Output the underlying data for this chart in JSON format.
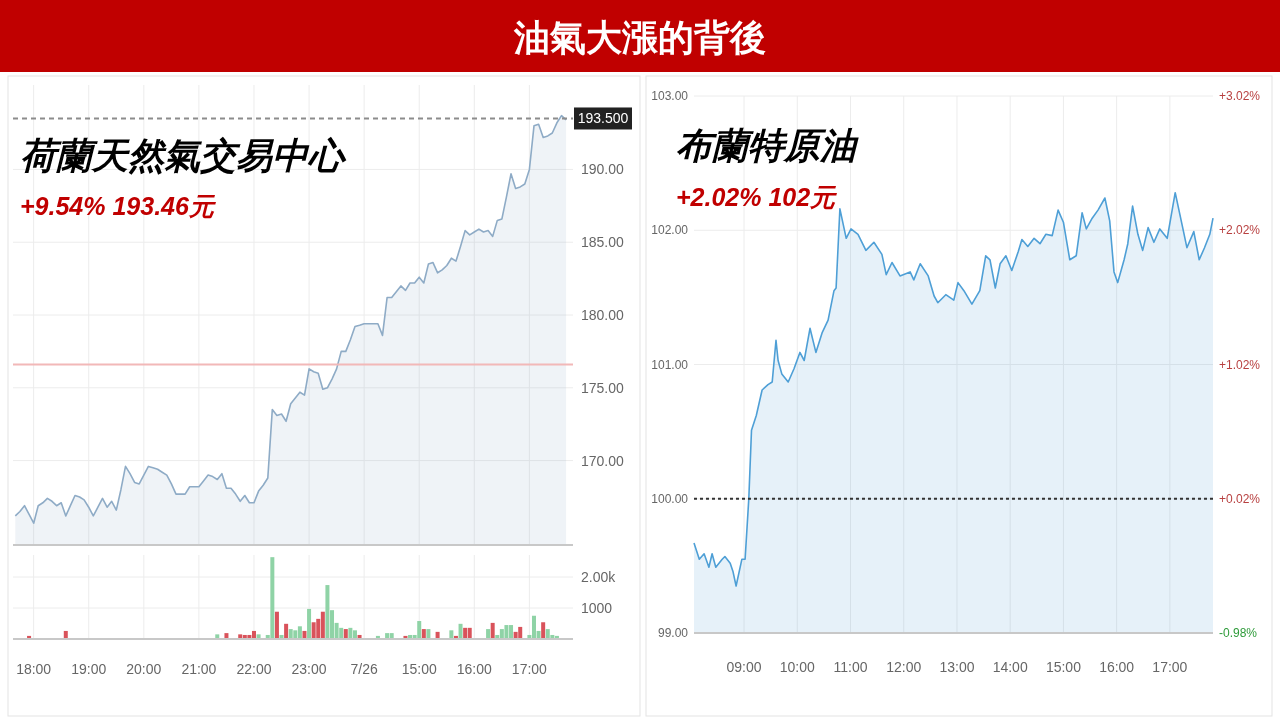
{
  "chart_data": [
    {
      "type": "other",
      "title": "油氣大漲的背後"
    },
    {
      "type": "area",
      "title": "荷蘭天然氣交易中心",
      "subtitle": "+9.54% 193.46元",
      "ylim": [
        164.2,
        195.8
      ],
      "grid": true,
      "tick_labels": "y",
      "categories": [
        null,
        null,
        null,
        null,
        null,
        null,
        null,
        null,
        null,
        null,
        null,
        null,
        null,
        null,
        null,
        null,
        null,
        null,
        null,
        null,
        null,
        null,
        null,
        null,
        null,
        null,
        null,
        null,
        null,
        null,
        null,
        null,
        null,
        null,
        null,
        null,
        null,
        null,
        null,
        null,
        null,
        null,
        null,
        null,
        null,
        null,
        null,
        null,
        null,
        null,
        null,
        null,
        null,
        null,
        null,
        null,
        null,
        null,
        null,
        null,
        null,
        null,
        null,
        null,
        null,
        null,
        null,
        null,
        null,
        null,
        null,
        null,
        null,
        null,
        null,
        null,
        null,
        null,
        null,
        null,
        null,
        null,
        null,
        null,
        null,
        null,
        null,
        null,
        null,
        null,
        null,
        null,
        null,
        null,
        null,
        null,
        null,
        null,
        null,
        null,
        null,
        null,
        null,
        null,
        null,
        null,
        null,
        null,
        null,
        null,
        null,
        null,
        null,
        null,
        null,
        null,
        null,
        null,
        null,
        null,
        null,
        null
      ],
      "yticks": [
        {
          "value": 170,
          "label": "170.00"
        },
        {
          "value": 175,
          "label": "175.00"
        },
        {
          "value": 180,
          "label": "180.00"
        },
        {
          "value": 185,
          "label": "185.00"
        },
        {
          "value": 190,
          "label": "190.00"
        }
      ],
      "ref_lines": [
        {
          "axis": "y",
          "value": 193.5,
          "label": "193.500",
          "color": "#8c8c8c",
          "line_style": "dashed"
        },
        {
          "axis": "y",
          "value": 176.6,
          "color": "#f2b8b8",
          "line_style": "solid"
        }
      ],
      "series": [
        {
          "color": "#8eabc6",
          "values": [
            166.2,
            166.5,
            166.9,
            166.3,
            165.7,
            166.9,
            167.1,
            167.4,
            167.2,
            166.9,
            167.1,
            166.2,
            166.9,
            167.6,
            167.5,
            167.3,
            166.8,
            166.2,
            166.8,
            167.4,
            166.8,
            167.2,
            166.6,
            168.0,
            169.6,
            169.1,
            168.5,
            168.4,
            169.0,
            169.6,
            169.5,
            169.4,
            169.2,
            169.0,
            168.4,
            167.7,
            167.7,
            167.7,
            168.2,
            168.2,
            168.2,
            168.6,
            169.0,
            168.9,
            168.7,
            169.1,
            168.1,
            168.1,
            167.7,
            167.2,
            167.6,
            167.1,
            167.1,
            167.9,
            168.3,
            168.8,
            173.5,
            173.1,
            173.2,
            172.7,
            173.9,
            174.3,
            174.7,
            174.5,
            176.3,
            176.1,
            176.0,
            174.9,
            175.0,
            175.6,
            176.3,
            177.5,
            177.5,
            178.3,
            179.2,
            179.3,
            179.4,
            179.4,
            179.4,
            179.4,
            178.6,
            181.2,
            181.2,
            181.6,
            182.0,
            181.7,
            182.2,
            182.2,
            182.6,
            182.2,
            183.5,
            183.6,
            182.9,
            183.1,
            183.4,
            183.9,
            183.7,
            184.7,
            185.8,
            185.5,
            185.7,
            185.9,
            185.7,
            185.8,
            185.4,
            186.5,
            186.6,
            188.1,
            189.7,
            188.7,
            188.8,
            189.0,
            190.0,
            193.0,
            193.1,
            192.2,
            192.3,
            192.5,
            193.2,
            193.7,
            193.4,
            null
          ]
        }
      ]
    },
    {
      "type": "bar",
      "ylim": [
        0,
        2710
      ],
      "grid": true,
      "categories": [
        null,
        null,
        null,
        null,
        "18:00",
        null,
        null,
        null,
        null,
        null,
        null,
        null,
        null,
        null,
        null,
        null,
        "19:00",
        null,
        null,
        null,
        null,
        null,
        null,
        null,
        null,
        null,
        null,
        null,
        "20:00",
        null,
        null,
        null,
        null,
        null,
        null,
        null,
        null,
        null,
        null,
        null,
        "21:00",
        null,
        null,
        null,
        null,
        null,
        null,
        null,
        null,
        null,
        null,
        null,
        "22:00",
        null,
        null,
        null,
        null,
        null,
        null,
        null,
        null,
        null,
        null,
        null,
        "23:00",
        null,
        null,
        null,
        null,
        null,
        null,
        null,
        null,
        null,
        null,
        null,
        "7/26",
        null,
        null,
        null,
        null,
        null,
        null,
        null,
        null,
        null,
        null,
        null,
        "15:00",
        null,
        null,
        null,
        null,
        null,
        null,
        null,
        null,
        null,
        null,
        null,
        "16:00",
        null,
        null,
        null,
        null,
        null,
        null,
        null,
        null,
        null,
        null,
        null,
        "17:00",
        null,
        null,
        null,
        null,
        null,
        null,
        null,
        null,
        null
      ],
      "yticks": [
        1000,
        {
          "value": 2000,
          "label": "2.00k"
        }
      ],
      "values": [
        null,
        null,
        null,
        100,
        null,
        null,
        null,
        null,
        null,
        null,
        null,
        260,
        null,
        null,
        null,
        null,
        null,
        null,
        null,
        null,
        null,
        null,
        null,
        null,
        null,
        null,
        null,
        null,
        null,
        null,
        null,
        null,
        null,
        null,
        null,
        null,
        null,
        null,
        null,
        null,
        null,
        null,
        null,
        null,
        150,
        null,
        190,
        null,
        null,
        150,
        130,
        130,
        260,
        150,
        null,
        130,
        2640,
        880,
        130,
        490,
        320,
        280,
        410,
        260,
        970,
        540,
        650,
        880,
        1740,
        930,
        520,
        360,
        320,
        360,
        280,
        130,
        null,
        null,
        null,
        100,
        null,
        190,
        190,
        null,
        null,
        100,
        130,
        130,
        580,
        320,
        320,
        null,
        230,
        null,
        null,
        280,
        100,
        490,
        360,
        360,
        null,
        null,
        null,
        320,
        520,
        130,
        320,
        450,
        450,
        230,
        390,
        null,
        130,
        750,
        260,
        540,
        320,
        130,
        100,
        null,
        null,
        null
      ],
      "colors": [
        null,
        null,
        null,
        "#d9535b",
        null,
        null,
        null,
        null,
        null,
        null,
        null,
        "#d9535b",
        null,
        null,
        null,
        null,
        null,
        null,
        null,
        null,
        null,
        null,
        null,
        null,
        null,
        null,
        null,
        null,
        null,
        null,
        null,
        null,
        null,
        null,
        null,
        null,
        null,
        null,
        null,
        null,
        null,
        null,
        null,
        null,
        "#8fd3a6",
        null,
        "#d9535b",
        null,
        null,
        "#d9535b",
        "#d9535b",
        "#d9535b",
        "#d9535b",
        "#8fd3a6",
        null,
        "#8fd3a6",
        "#8fd3a6",
        "#d9535b",
        "#8fd3a6",
        "#d9535b",
        "#8fd3a6",
        "#8fd3a6",
        "#8fd3a6",
        "#d9535b",
        "#8fd3a6",
        "#d9535b",
        "#d9535b",
        "#d9535b",
        "#8fd3a6",
        "#8fd3a6",
        "#8fd3a6",
        "#8fd3a6",
        "#d9535b",
        "#8fd3a6",
        "#8fd3a6",
        "#d9535b",
        null,
        null,
        null,
        "#8fd3a6",
        null,
        "#8fd3a6",
        "#8fd3a6",
        null,
        null,
        "#d9535b",
        "#8fd3a6",
        "#8fd3a6",
        "#8fd3a6",
        "#d9535b",
        "#8fd3a6",
        null,
        "#d9535b",
        null,
        null,
        "#8fd3a6",
        "#d9535b",
        "#8fd3a6",
        "#d9535b",
        "#d9535b",
        null,
        null,
        null,
        "#8fd3a6",
        "#d9535b",
        "#8fd3a6",
        "#8fd3a6",
        "#8fd3a6",
        "#8fd3a6",
        "#d9535b",
        "#d9535b",
        null,
        "#8fd3a6",
        "#8fd3a6",
        "#8fd3a6",
        "#d9535b",
        "#8fd3a6",
        "#8fd3a6",
        "#8fd3a6",
        null,
        null,
        null
      ]
    },
    {
      "type": "area",
      "title": "布蘭特原油",
      "subtitle": "+2.02% 102元",
      "xlim": [
        8.06,
        17.81
      ],
      "ylim": [
        99,
        103
      ],
      "y2lim": [
        -0.98,
        3.02
      ],
      "grid": true,
      "xticks": [
        {
          "value": 9,
          "label": "09:00"
        },
        {
          "value": 10,
          "label": "10:00"
        },
        {
          "value": 11,
          "label": "11:00"
        },
        {
          "value": 12,
          "label": "12:00"
        },
        {
          "value": 13,
          "label": "13:00"
        },
        {
          "value": 14,
          "label": "14:00"
        },
        {
          "value": 15,
          "label": "15:00"
        },
        {
          "value": 16,
          "label": "16:00"
        },
        {
          "value": 17,
          "label": "17:00"
        }
      ],
      "yticks": [
        {
          "value": 99,
          "label": "99.00"
        },
        {
          "value": 100,
          "label": "100.00"
        },
        {
          "value": 101,
          "label": "101.00"
        },
        {
          "value": 102,
          "label": "102.00"
        },
        {
          "value": 103,
          "label": "103.00"
        }
      ],
      "y2ticks": [
        {
          "value": -0.98,
          "label": "-0.98%"
        },
        {
          "value": 0.02,
          "label": "+0.02%"
        },
        {
          "value": 1.02,
          "label": "+1.02%"
        },
        {
          "value": 2.02,
          "label": "+2.02%"
        },
        {
          "value": 3.02,
          "label": "+3.02%"
        }
      ],
      "ref_lines": [
        {
          "axis": "y",
          "value": 100,
          "color": "#333333",
          "line_style": "dotted"
        }
      ],
      "x": [
        8.06,
        8.16,
        8.25,
        8.34,
        8.4,
        8.47,
        8.59,
        8.64,
        8.74,
        8.79,
        8.85,
        8.96,
        9.02,
        9.09,
        9.14,
        9.23,
        9.34,
        9.45,
        9.53,
        9.6,
        9.64,
        9.71,
        9.83,
        9.94,
        10.05,
        10.13,
        10.24,
        10.35,
        10.47,
        10.58,
        10.69,
        10.73,
        10.8,
        10.92,
        11.01,
        11.14,
        11.29,
        11.44,
        11.59,
        11.67,
        11.78,
        11.93,
        12.12,
        12.19,
        12.31,
        12.46,
        12.57,
        12.64,
        12.79,
        12.94,
        13.02,
        13.13,
        13.28,
        13.43,
        13.54,
        13.62,
        13.72,
        13.81,
        13.92,
        14.03,
        14.15,
        14.22,
        14.33,
        14.45,
        14.56,
        14.67,
        14.79,
        14.9,
        15.0,
        15.12,
        15.24,
        15.35,
        15.43,
        15.54,
        15.65,
        15.78,
        15.87,
        15.95,
        16.02,
        16.14,
        16.21,
        16.3,
        16.4,
        16.49,
        16.59,
        16.7,
        16.81,
        16.95,
        17.1,
        17.23,
        17.32,
        17.45,
        17.55,
        17.65,
        17.75,
        17.81
      ],
      "series": [
        {
          "color": "#4e9fd6",
          "values": [
            99.67,
            99.55,
            99.59,
            99.49,
            99.59,
            99.49,
            99.55,
            99.57,
            99.52,
            99.46,
            99.35,
            99.55,
            99.55,
            100.0,
            100.51,
            100.62,
            100.81,
            100.85,
            100.87,
            101.18,
            101.03,
            100.93,
            100.87,
            100.97,
            101.09,
            101.03,
            101.27,
            101.09,
            101.24,
            101.33,
            101.55,
            101.57,
            102.16,
            101.94,
            102.01,
            101.97,
            101.85,
            101.91,
            101.82,
            101.67,
            101.76,
            101.66,
            101.69,
            101.63,
            101.75,
            101.66,
            101.51,
            101.46,
            101.52,
            101.48,
            101.61,
            101.55,
            101.45,
            101.55,
            101.81,
            101.78,
            101.57,
            101.75,
            101.81,
            101.7,
            101.84,
            101.93,
            101.88,
            101.94,
            101.9,
            101.97,
            101.96,
            102.15,
            102.06,
            101.78,
            101.81,
            102.13,
            102.01,
            102.09,
            102.15,
            102.24,
            102.07,
            101.69,
            101.61,
            101.78,
            101.9,
            102.18,
            101.97,
            101.85,
            102.02,
            101.91,
            102.01,
            101.94,
            102.28,
            102.04,
            101.87,
            101.99,
            101.78,
            101.87,
            101.97,
            102.09
          ]
        }
      ]
    }
  ]
}
